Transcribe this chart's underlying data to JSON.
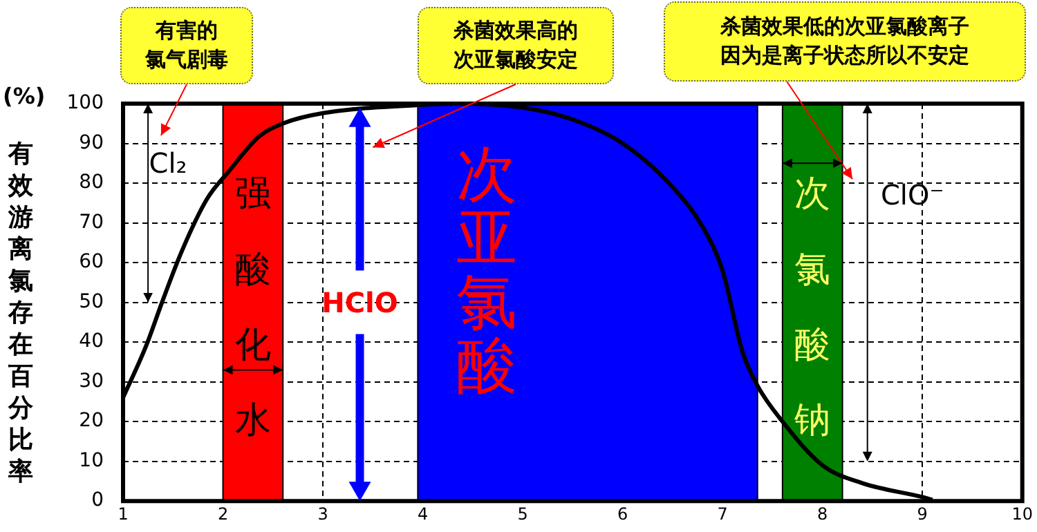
{
  "chart_data": {
    "type": "line",
    "ylabel": "有效游离氯存在百分比率",
    "xlim": [
      1,
      10
    ],
    "xticks": [
      1,
      2,
      3,
      4,
      5,
      6,
      7,
      8,
      9,
      10
    ],
    "ylim": [
      0,
      100
    ],
    "yticks": [
      0,
      10,
      20,
      30,
      40,
      50,
      60,
      70,
      80,
      90,
      100
    ],
    "grid": true,
    "legend": false,
    "marker": "none",
    "line_style": "solid",
    "series": [
      {
        "color": "#000000",
        "x": [
          1,
          1.23,
          1.39,
          1.59,
          1.84,
          2.06,
          2.36,
          2.6,
          3,
          4,
          4.3,
          5,
          5.5,
          6,
          6.5,
          6.8,
          7,
          7.2,
          7.35,
          7.6,
          8,
          8.4,
          9,
          9.1
        ],
        "values": [
          26,
          39,
          50,
          63,
          76,
          83,
          91.7,
          95,
          97.6,
          99.7,
          100,
          99,
          96,
          90,
          79,
          69,
          58,
          37.5,
          29,
          20,
          9,
          4.5,
          1,
          0.3
        ]
      }
    ],
    "bands": [
      {
        "axis": "x",
        "from": 2,
        "to": 2.6,
        "label": "强酸化水",
        "color": "#ff0000"
      },
      {
        "axis": "x",
        "from": 3.95,
        "to": 7.35,
        "label": "次亚氯酸",
        "color": "#0000ff"
      },
      {
        "axis": "x",
        "from": 7.6,
        "to": 8.2,
        "label": "次氯酸钠",
        "color": "#008000"
      }
    ],
    "annotations": [
      "有害的氯气剧毒",
      "杀菌效果高的次亚氯酸安定",
      "杀菌效果低的次亚氯酸离子因为是离子状态所以不安定",
      "Cl₂",
      "HClO",
      "ClO⁻",
      "(%)"
    ]
  }
}
